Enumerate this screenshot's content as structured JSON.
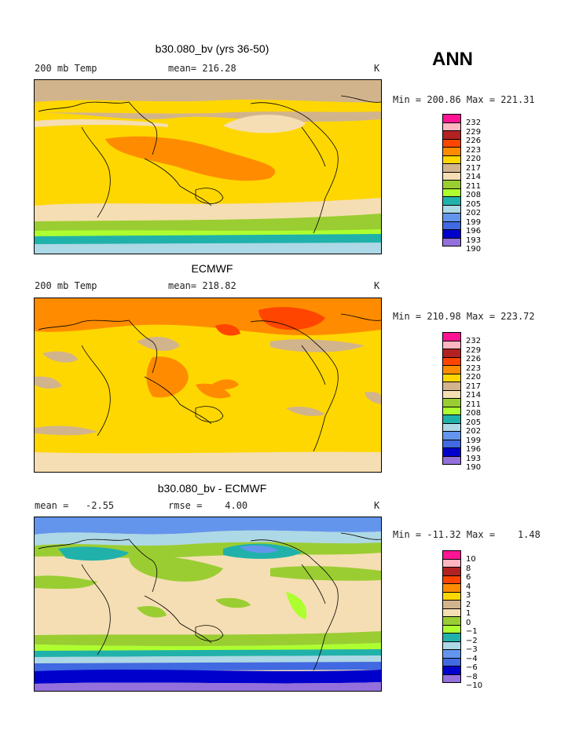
{
  "season": "ANN",
  "panels": [
    {
      "title": "b30.080_bv (yrs 36-50)",
      "left_label": "200 mb Temp",
      "center_label": "mean= 216.28",
      "units": "K",
      "minmax": "Min = 200.86 Max = 221.31",
      "legend_labels": [
        "232",
        "229",
        "226",
        "223",
        "220",
        "217",
        "214",
        "211",
        "208",
        "205",
        "202",
        "199",
        "196",
        "193",
        "190"
      ]
    },
    {
      "title": "ECMWF",
      "left_label": "200 mb Temp",
      "center_label": "mean= 218.82",
      "units": "K",
      "minmax": "Min = 210.98 Max = 223.72",
      "legend_labels": [
        "232",
        "229",
        "226",
        "223",
        "220",
        "217",
        "214",
        "211",
        "208",
        "205",
        "202",
        "199",
        "196",
        "193",
        "190"
      ]
    },
    {
      "title": "b30.080_bv - ECMWF",
      "left_label": "mean =   -2.55",
      "center_label": "rmse =    4.00",
      "units": "K",
      "minmax": "Min = -11.32 Max =    1.48",
      "legend_labels": [
        "10",
        "8",
        "6",
        "4",
        "3",
        "2",
        "1",
        "0",
        "−1",
        "−2",
        "−3",
        "−4",
        "−6",
        "−8",
        "−10"
      ]
    }
  ],
  "legend_colors": [
    "#ff1493",
    "#ffb6c1",
    "#b22222",
    "#ff4500",
    "#ff8c00",
    "#ffd700",
    "#d2b48c",
    "#f5deb3",
    "#9acd32",
    "#adff2f",
    "#20b2aa",
    "#add8e6",
    "#6495ed",
    "#4169e1",
    "#0000cd",
    "#9370db"
  ]
}
